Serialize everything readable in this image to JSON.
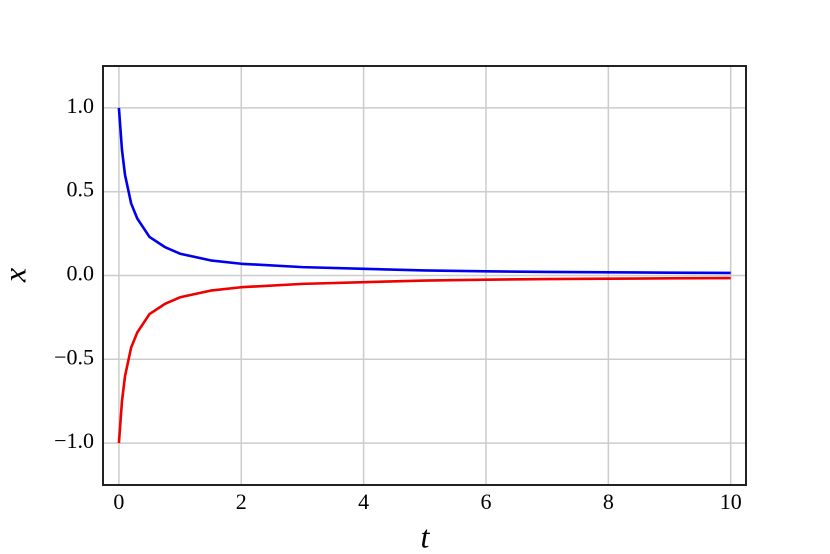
{
  "chart_data": {
    "type": "line",
    "xlabel": "t",
    "ylabel": "x",
    "x": [
      0,
      0.05,
      0.1,
      0.2,
      0.3,
      0.5,
      0.75,
      1,
      1.5,
      2,
      3,
      4,
      5,
      6,
      7,
      8,
      9,
      10
    ],
    "series": [
      {
        "color": "#0000ee",
        "values": [
          1,
          0.75,
          0.6,
          0.43,
          0.34,
          0.23,
          0.17,
          0.13,
          0.09,
          0.07,
          0.05,
          0.04,
          0.03,
          0.025,
          0.021,
          0.019,
          0.017,
          0.015
        ]
      },
      {
        "color": "#ee0000",
        "values": [
          -1,
          -0.75,
          -0.6,
          -0.43,
          -0.34,
          -0.23,
          -0.17,
          -0.13,
          -0.09,
          -0.07,
          -0.05,
          -0.04,
          -0.03,
          -0.025,
          -0.021,
          -0.019,
          -0.017,
          -0.015
        ]
      }
    ],
    "xlim": [
      -0.26,
      10.25
    ],
    "ylim": [
      -1.25,
      1.25
    ],
    "xticks": [
      0,
      2,
      4,
      6,
      8,
      10
    ],
    "yticks": [
      {
        "value": -1,
        "label": "−1.0"
      },
      {
        "value": -0.5,
        "label": "−0.5"
      },
      {
        "value": 0,
        "label": "0.0"
      },
      {
        "value": 0.5,
        "label": "0.5"
      },
      {
        "value": 1,
        "label": "1.0"
      }
    ],
    "grid": true
  }
}
